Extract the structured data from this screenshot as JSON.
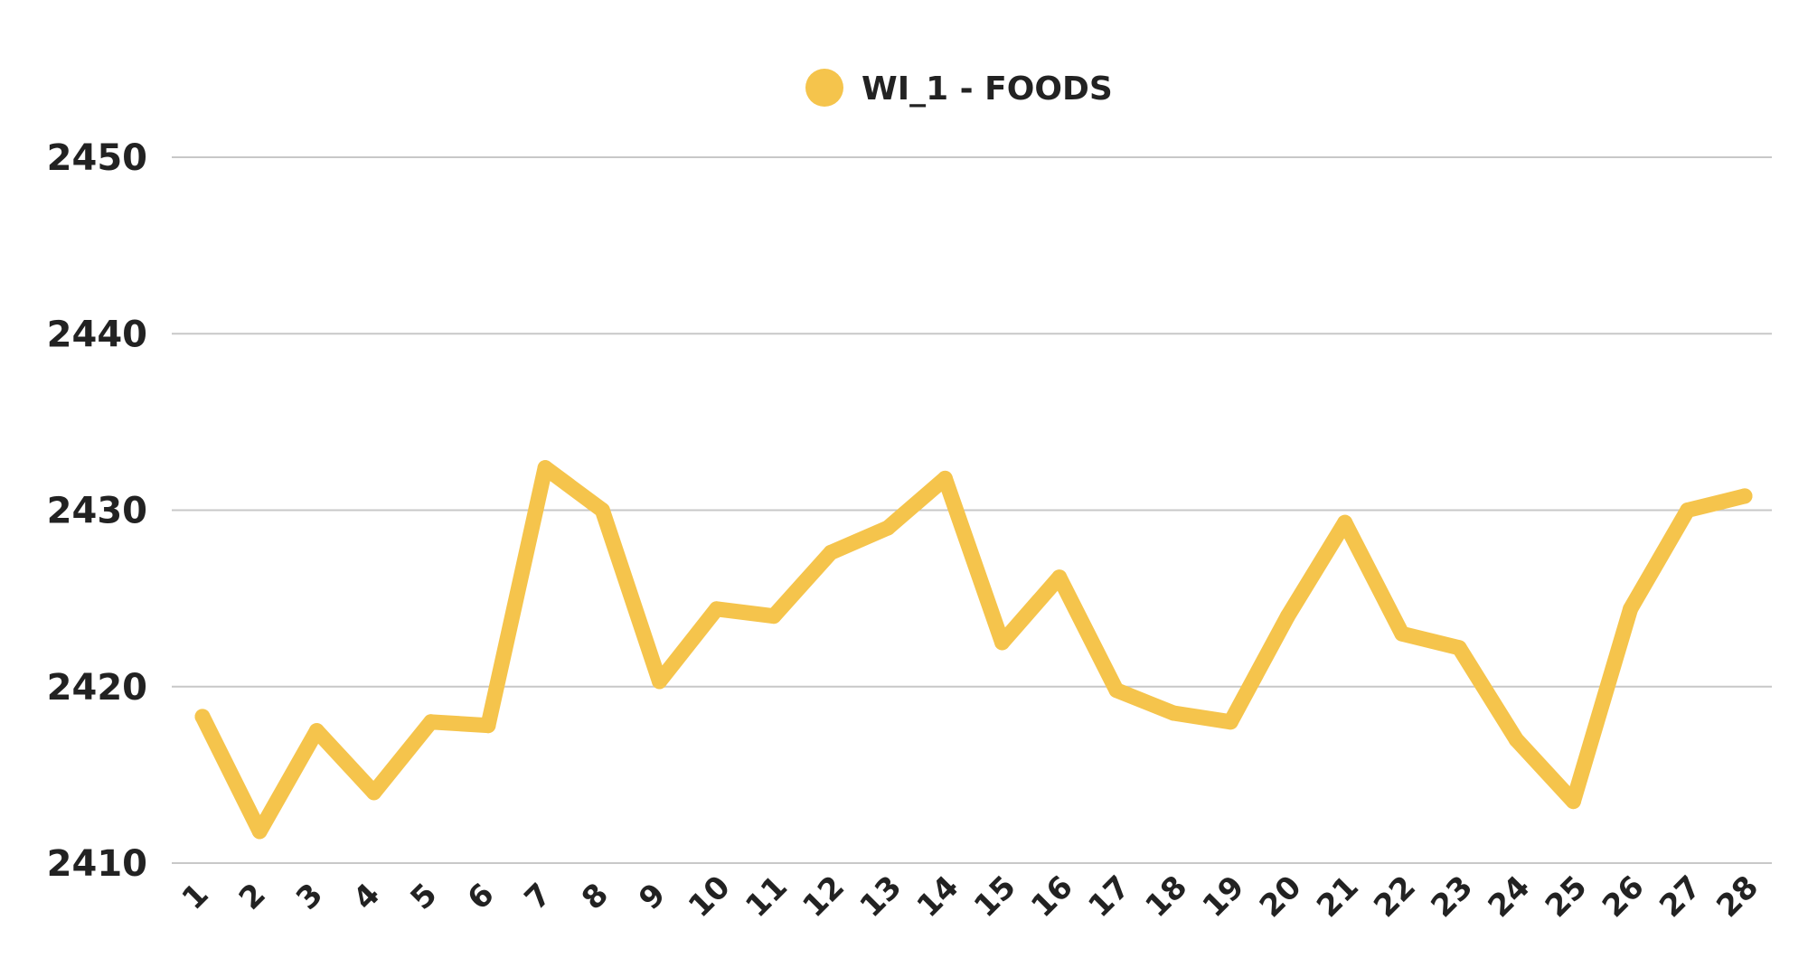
{
  "chart_data": {
    "type": "line",
    "title": "",
    "xlabel": "",
    "ylabel": "",
    "ylim": [
      2410,
      2450
    ],
    "yticks": [
      2410,
      2420,
      2430,
      2440,
      2450
    ],
    "grid": true,
    "legend_position": "top-center",
    "categories": [
      "1",
      "2",
      "3",
      "4",
      "5",
      "6",
      "7",
      "8",
      "9",
      "10",
      "11",
      "12",
      "13",
      "14",
      "15",
      "16",
      "17",
      "18",
      "19",
      "20",
      "21",
      "22",
      "23",
      "24",
      "25",
      "26",
      "27",
      "28"
    ],
    "series": [
      {
        "name": "WI_1 - FOODS",
        "color": "#F5C44C",
        "values": [
          2418.3,
          2411.8,
          2417.5,
          2414.0,
          2418.0,
          2417.8,
          2432.4,
          2430.0,
          2420.3,
          2424.4,
          2424.0,
          2427.6,
          2429.0,
          2431.8,
          2422.5,
          2426.2,
          2419.8,
          2418.5,
          2418.0,
          2424.0,
          2429.3,
          2423.0,
          2422.2,
          2417.0,
          2413.5,
          2424.4,
          2430.0,
          2430.8
        ]
      }
    ]
  }
}
